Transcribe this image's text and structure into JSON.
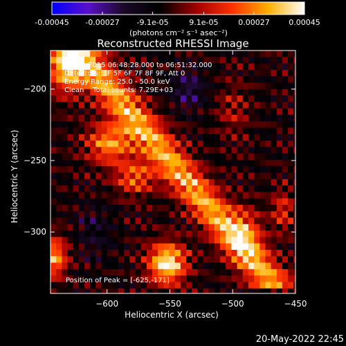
{
  "colorbar": {
    "tick_labels": [
      "-0.00045",
      "-0.00027",
      "-9.1e-05",
      "9.1e-05",
      "0.00027",
      "0.00045"
    ],
    "tick_values": [
      -0.00045,
      -0.00027,
      -9.1e-05,
      9.1e-05,
      0.00027,
      0.00045
    ],
    "range": [
      -0.00045,
      0.00045
    ],
    "unit_label": "(photons cm⁻² s⁻¹ asec⁻²)",
    "colors": [
      "#0000ff",
      "#5a10c8",
      "#1a0826",
      "#000000",
      "#a00000",
      "#ff3000",
      "#ffb000",
      "#ffffff"
    ]
  },
  "chart_data": {
    "type": "heatmap",
    "title": "Reconstructed RHESSI Image",
    "xlabel": "Heliocentric X (arcsec)",
    "ylabel": "Heliocentric Y (arcsec)",
    "xlim": [
      -645,
      -450
    ],
    "ylim": [
      -343,
      -173
    ],
    "x_ticks": [
      -600,
      -550,
      -500,
      -450
    ],
    "x_tick_labels": [
      "−600",
      "−550",
      "−500",
      "−450"
    ],
    "y_ticks": [
      -200,
      -250,
      -300
    ],
    "y_tick_labels": [
      "−200",
      "−250",
      "−300"
    ],
    "annotations": [
      "4-May-2015 06:48:28.000 to 06:51:32.000",
      "Detectors: 3F 5F 6F 7F 8F 9F, Att 0",
      "Energy Range: 25.0 - 50.0 keV",
      "Clean    Total counts: 7.29E+03"
    ],
    "peak_label": "Position of Peak = [-625,-171]",
    "peak": [
      -625,
      -171
    ]
  },
  "footer": {
    "timestamp": "20-May-2022 22:45"
  }
}
